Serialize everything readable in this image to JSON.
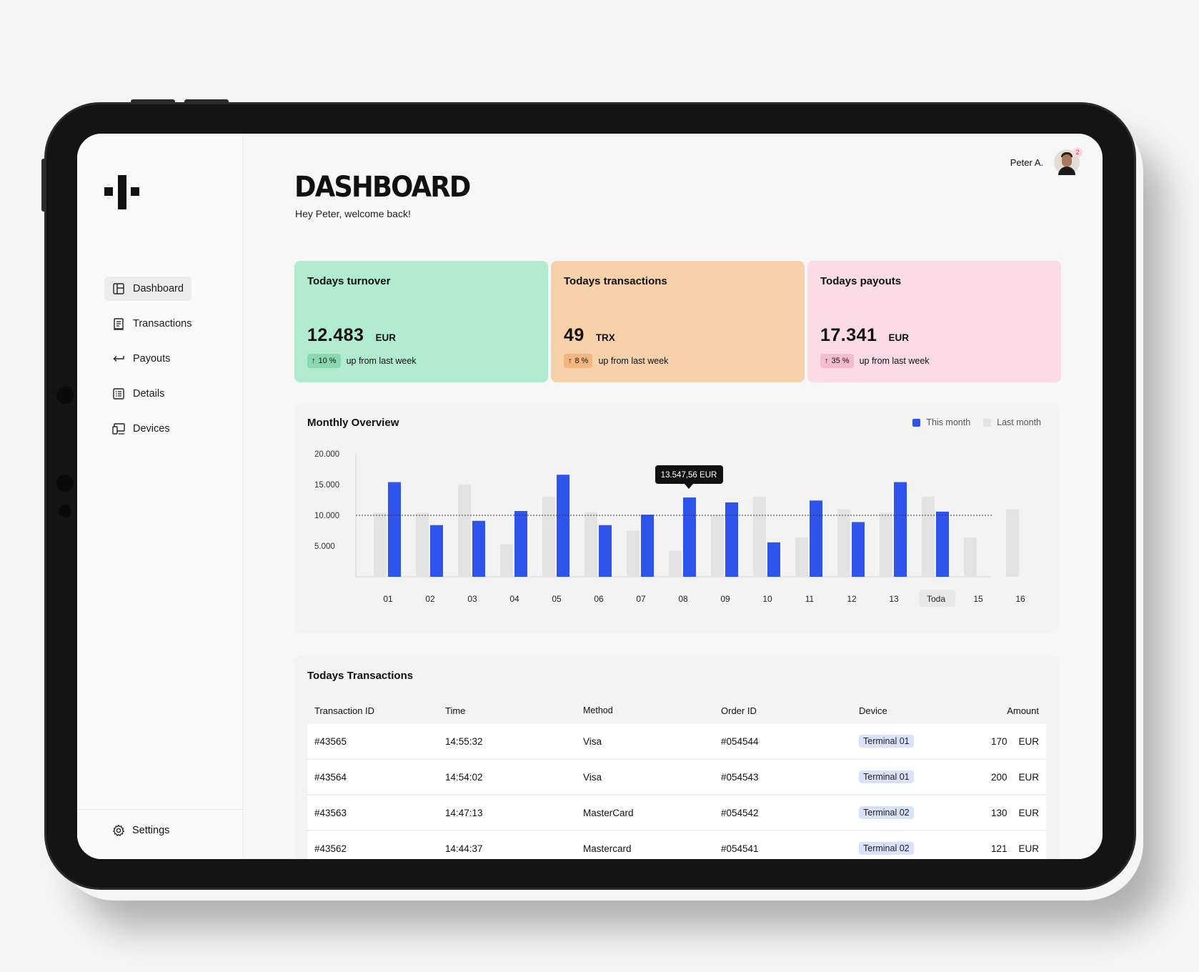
{
  "user": {
    "name": "Peter A.",
    "notifications": "2"
  },
  "header": {
    "title": "DASHBOARD",
    "subtitle": "Hey Peter, welcome back!"
  },
  "sidebar": {
    "items": [
      {
        "label": "Dashboard",
        "icon": "dashboard-icon",
        "active": true
      },
      {
        "label": "Transactions",
        "icon": "receipt-icon",
        "active": false
      },
      {
        "label": "Payouts",
        "icon": "arrow-return-icon",
        "active": false
      },
      {
        "label": "Details",
        "icon": "list-icon",
        "active": false
      },
      {
        "label": "Devices",
        "icon": "devices-icon",
        "active": false
      }
    ],
    "settings_label": "Settings"
  },
  "cards": [
    {
      "title": "Todays turnover",
      "value": "12.483",
      "unit": "EUR",
      "change": "10 %",
      "change_text": "up from last week",
      "bg": "#b2ecce",
      "pill_bg": "#8ad8ad"
    },
    {
      "title": "Todays transactions",
      "value": "49",
      "unit": "TRX",
      "change": "8 %",
      "change_text": "up from last week",
      "bg": "#f7d1a9",
      "pill_bg": "#f3b680"
    },
    {
      "title": "Todays payouts",
      "value": "17.341",
      "unit": "EUR",
      "change": "35 %",
      "change_text": "up from last week",
      "bg": "#fadbe6",
      "pill_bg": "#f4bccf"
    }
  ],
  "chart_data": {
    "type": "bar",
    "title": "Monthly Overview",
    "categories": [
      "01",
      "02",
      "03",
      "04",
      "05",
      "06",
      "07",
      "08",
      "09",
      "10",
      "11",
      "12",
      "13",
      "Toda",
      "15",
      "16"
    ],
    "series": [
      {
        "name": "Last month",
        "color": "#e3e3e3",
        "values": [
          10400,
          10400,
          15000,
          5300,
          13000,
          10500,
          7500,
          4200,
          10100,
          13000,
          6400,
          11000,
          10400,
          13000,
          6400,
          11000
        ]
      },
      {
        "name": "This month",
        "color": "#2f54eb",
        "values": [
          15400,
          8400,
          9100,
          10700,
          16600,
          8400,
          10100,
          12900,
          12100,
          5600,
          12400,
          8900,
          15400,
          10600,
          null,
          null
        ]
      }
    ],
    "y_ticks": [
      "20.000",
      "15.000",
      "10.000",
      "5.000"
    ],
    "ylim": [
      0,
      20000
    ],
    "reference_line": 10000,
    "tooltip": "13.547,56 EUR",
    "highlighted_category": "Toda",
    "legend_placement": "top-right"
  },
  "transactions": {
    "title": "Todays Transactions",
    "columns": [
      "Transaction ID",
      "Time",
      "Method",
      "Order ID",
      "Device",
      "Amount"
    ],
    "rows": [
      {
        "id": "#43565",
        "time": "14:55:32",
        "method": "Visa",
        "order": "#054544",
        "device": "Terminal 01",
        "amount": "170",
        "currency": "EUR"
      },
      {
        "id": "#43564",
        "time": "14:54:02",
        "method": "Visa",
        "order": "#054543",
        "device": "Terminal 01",
        "amount": "200",
        "currency": "EUR"
      },
      {
        "id": "#43563",
        "time": "14:47:13",
        "method": "MasterCard",
        "order": "#054542",
        "device": "Terminal 02",
        "amount": "130",
        "currency": "EUR"
      },
      {
        "id": "#43562",
        "time": "14:44:37",
        "method": "Mastercard",
        "order": "#054541",
        "device": "Terminal 02",
        "amount": "121",
        "currency": "EUR"
      }
    ]
  }
}
